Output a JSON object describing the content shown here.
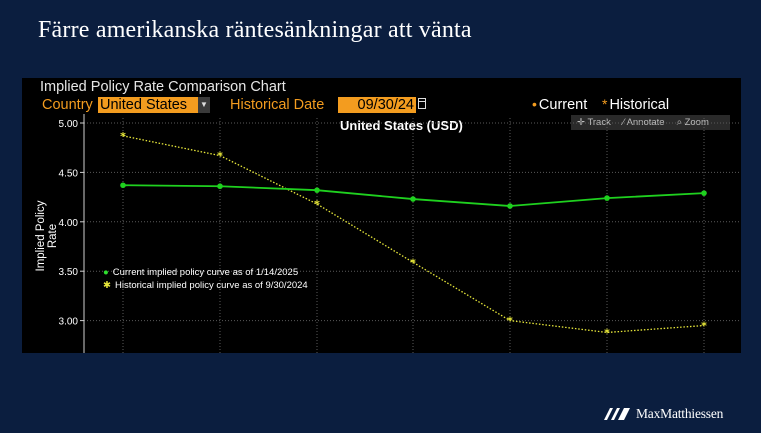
{
  "slide": {
    "title": "Färre amerikanska räntesänkningar att vänta"
  },
  "panel": {
    "name": "Implied Policy Rate Comparison Chart",
    "country_label": "Country",
    "country_value": "United States",
    "hist_label": "Historical Date",
    "hist_value": "09/30/24",
    "legend_current": "Current",
    "legend_historical": "Historical",
    "tools": {
      "track": "Track",
      "annotate": "Annotate",
      "zoom": "Zoom"
    }
  },
  "brand": {
    "name": "MaxMatthiessen"
  },
  "colors": {
    "current": "#1fd11f",
    "historical": "#e8e83a",
    "accent": "#f39c1f",
    "background": "#0b1e3f"
  },
  "chart_data": {
    "type": "line",
    "title": "United States (USD)",
    "ylabel": "Implied Policy Rate",
    "ylim": [
      2.75,
      5.0
    ],
    "yticks": [
      "5.00",
      "4.50",
      "4.00",
      "3.50",
      "3.00"
    ],
    "ytick_values": [
      5.0,
      4.5,
      4.0,
      3.5,
      3.0
    ],
    "grid": true,
    "series": [
      {
        "name": "Current implied policy curve as of 1/14/2025",
        "key": "current",
        "x": [
          1,
          2,
          3,
          4,
          5,
          6,
          7
        ],
        "values": [
          4.37,
          4.36,
          4.32,
          4.23,
          4.16,
          4.24,
          4.29
        ]
      },
      {
        "name": "Historical implied policy curve as of 9/30/2024",
        "key": "historical",
        "x": [
          1,
          2,
          3,
          4,
          5,
          6,
          7
        ],
        "values": [
          4.87,
          4.67,
          4.18,
          3.59,
          3.0,
          2.88,
          2.95
        ]
      }
    ]
  }
}
